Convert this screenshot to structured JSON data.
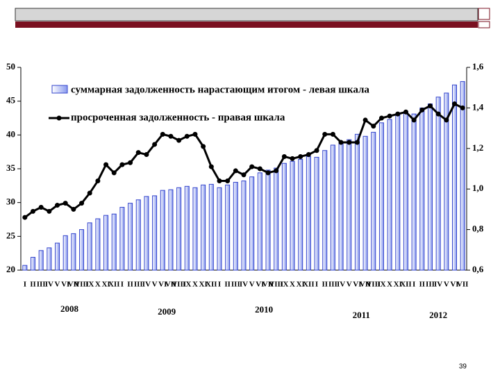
{
  "chart_data": {
    "type": "bar-line",
    "categories": [
      "I",
      "II",
      "III",
      "IV",
      "V",
      "VI",
      "VII",
      "VIII",
      "IX",
      "X",
      "XI",
      "XII",
      "I",
      "II",
      "III",
      "IV",
      "V",
      "VI",
      "VII",
      "VIII",
      "IX",
      "X",
      "XI",
      "XII",
      "I",
      "II",
      "III",
      "IV",
      "V",
      "VI",
      "VII",
      "VIII",
      "IX",
      "X",
      "XI",
      "XII",
      "I",
      "II",
      "III",
      "IV",
      "V",
      "VI",
      "VII",
      "VIII",
      "IX",
      "X",
      "XI",
      "XII",
      "I",
      "II",
      "III",
      "IV",
      "V",
      "VI",
      "VII"
    ],
    "groups": [
      "2008",
      "2009",
      "2010",
      "2011",
      "2012"
    ],
    "series": [
      {
        "name": "суммарная задолженность нарастающим итогом - левая шкала",
        "type": "bar",
        "color": "#3344cc",
        "values": [
          20.7,
          21.9,
          22.9,
          23.3,
          24.0,
          25.1,
          25.4,
          26.0,
          27.0,
          27.6,
          28.1,
          28.3,
          29.3,
          29.9,
          30.4,
          30.9,
          31.0,
          31.8,
          31.9,
          32.2,
          32.4,
          32.2,
          32.6,
          32.7,
          32.2,
          32.6,
          33.0,
          33.2,
          33.8,
          34.4,
          34.8,
          35.1,
          35.8,
          36.1,
          36.4,
          36.8,
          36.7,
          37.7,
          38.5,
          38.8,
          39.3,
          40.1,
          39.8,
          40.4,
          41.8,
          42.3,
          43.0,
          43.4,
          43.1,
          44.0,
          44.6,
          45.6,
          46.2,
          47.4,
          47.9
        ]
      },
      {
        "name": "просроченная задолженность - правая шкала",
        "type": "line",
        "axis": "y2",
        "color": "#000000",
        "values": [
          0.86,
          0.89,
          0.91,
          0.89,
          0.92,
          0.93,
          0.9,
          0.93,
          0.98,
          1.04,
          1.12,
          1.08,
          1.12,
          1.13,
          1.18,
          1.17,
          1.22,
          1.27,
          1.26,
          1.24,
          1.26,
          1.27,
          1.21,
          1.11,
          1.04,
          1.04,
          1.09,
          1.07,
          1.11,
          1.1,
          1.08,
          1.09,
          1.16,
          1.15,
          1.16,
          1.17,
          1.19,
          1.27,
          1.27,
          1.23,
          1.23,
          1.23,
          1.34,
          1.31,
          1.35,
          1.36,
          1.37,
          1.38,
          1.34,
          1.39,
          1.41,
          1.37,
          1.34,
          1.42,
          1.4
        ]
      }
    ],
    "ylim": [
      20,
      50
    ],
    "yticks": [
      20,
      25,
      30,
      35,
      40,
      45,
      50
    ],
    "y2lim": [
      0.6,
      1.6
    ],
    "y2ticks": [
      {
        "value": 0.6,
        "label": "0,6"
      },
      {
        "value": 0.8,
        "label": "0,8"
      },
      {
        "value": 1.0,
        "label": "1,0"
      },
      {
        "value": 1.2,
        "label": "1,2"
      },
      {
        "value": 1.4,
        "label": "1,4"
      },
      {
        "value": 1.6,
        "label": "1,6"
      }
    ]
  },
  "page_number": "39"
}
